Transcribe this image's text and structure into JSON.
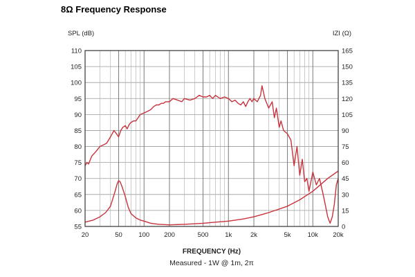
{
  "title": "8Ω Frequency Response",
  "chart_data": {
    "type": "line",
    "title": "8Ω Frequency Response",
    "xlabel": "FREQUENCY (Hz)",
    "ylabel_left": "SPL (dB)",
    "ylabel_right": "IZI (Ω)",
    "caption": "Measured - 1W @ 1m, 2π",
    "x_scale": "log",
    "xlim": [
      20,
      20000
    ],
    "ylim_left": [
      55,
      110
    ],
    "ylim_right": [
      0,
      165
    ],
    "x_ticks": [
      20,
      50,
      100,
      200,
      500,
      1000,
      2000,
      5000,
      10000,
      20000
    ],
    "x_tick_labels": [
      "20",
      "50",
      "100",
      "200",
      "500",
      "1k",
      "2k",
      "5k",
      "10k",
      "20k"
    ],
    "y_left_ticks": [
      55,
      60,
      65,
      70,
      75,
      80,
      85,
      90,
      95,
      100,
      105,
      110
    ],
    "y_right_ticks": [
      0,
      15,
      30,
      45,
      60,
      75,
      90,
      105,
      120,
      135,
      150,
      165
    ],
    "grid": true,
    "line_color": "#c8323c",
    "series": [
      {
        "axis": "left",
        "x": [
          20,
          21,
          22,
          24,
          26,
          28,
          30,
          33,
          36,
          40,
          44,
          47,
          50,
          53,
          56,
          60,
          63,
          67,
          70,
          75,
          80,
          85,
          90,
          100,
          110,
          120,
          130,
          140,
          150,
          160,
          170,
          180,
          200,
          220,
          250,
          280,
          300,
          350,
          400,
          450,
          500,
          550,
          600,
          650,
          700,
          800,
          900,
          1000,
          1100,
          1200,
          1300,
          1400,
          1500,
          1600,
          1700,
          1800,
          1900,
          2000,
          2200,
          2400,
          2500,
          2600,
          2700,
          2800,
          3000,
          3300,
          3500,
          3700,
          4000,
          4200,
          4500,
          5000,
          5500,
          6000,
          6500,
          7000,
          7500,
          8000,
          8500,
          9000,
          10000,
          11000,
          12000,
          13000,
          14000,
          15000,
          16000,
          17000,
          18000,
          19000,
          20000
        ],
        "values": [
          74,
          75,
          74.5,
          77,
          78,
          79,
          80,
          80.5,
          81,
          83,
          85,
          84,
          83,
          85,
          86,
          86.5,
          85.5,
          87,
          87.5,
          88,
          88,
          89,
          90,
          90.5,
          91,
          91.5,
          92.5,
          93,
          93,
          93.5,
          93.5,
          94,
          94,
          95,
          94.5,
          94,
          95,
          94.5,
          95,
          96,
          95.5,
          95.5,
          96,
          95,
          96,
          95,
          95.5,
          95,
          94,
          94.5,
          93.5,
          93,
          94,
          92.5,
          94,
          95,
          94,
          95,
          94,
          96,
          99,
          97,
          95,
          94,
          92,
          94,
          89,
          92,
          86,
          88,
          85,
          84,
          82,
          74,
          80,
          71,
          76,
          69,
          70,
          66,
          72,
          68,
          70,
          66,
          62,
          58,
          56,
          58,
          62,
          68,
          70
        ]
      },
      {
        "axis": "right",
        "x": [
          20,
          25,
          30,
          35,
          40,
          45,
          48,
          50,
          52,
          55,
          60,
          65,
          70,
          80,
          90,
          100,
          120,
          150,
          200,
          300,
          500,
          700,
          1000,
          1500,
          2000,
          3000,
          5000,
          7000,
          10000,
          15000,
          20000
        ],
        "values": [
          4,
          6,
          9,
          13,
          19,
          32,
          40,
          43,
          42,
          37,
          28,
          18,
          12,
          8,
          6,
          5,
          3,
          2,
          1.5,
          2,
          3,
          4,
          5,
          7,
          9,
          13,
          19,
          25,
          33,
          45,
          52
        ]
      }
    ]
  }
}
